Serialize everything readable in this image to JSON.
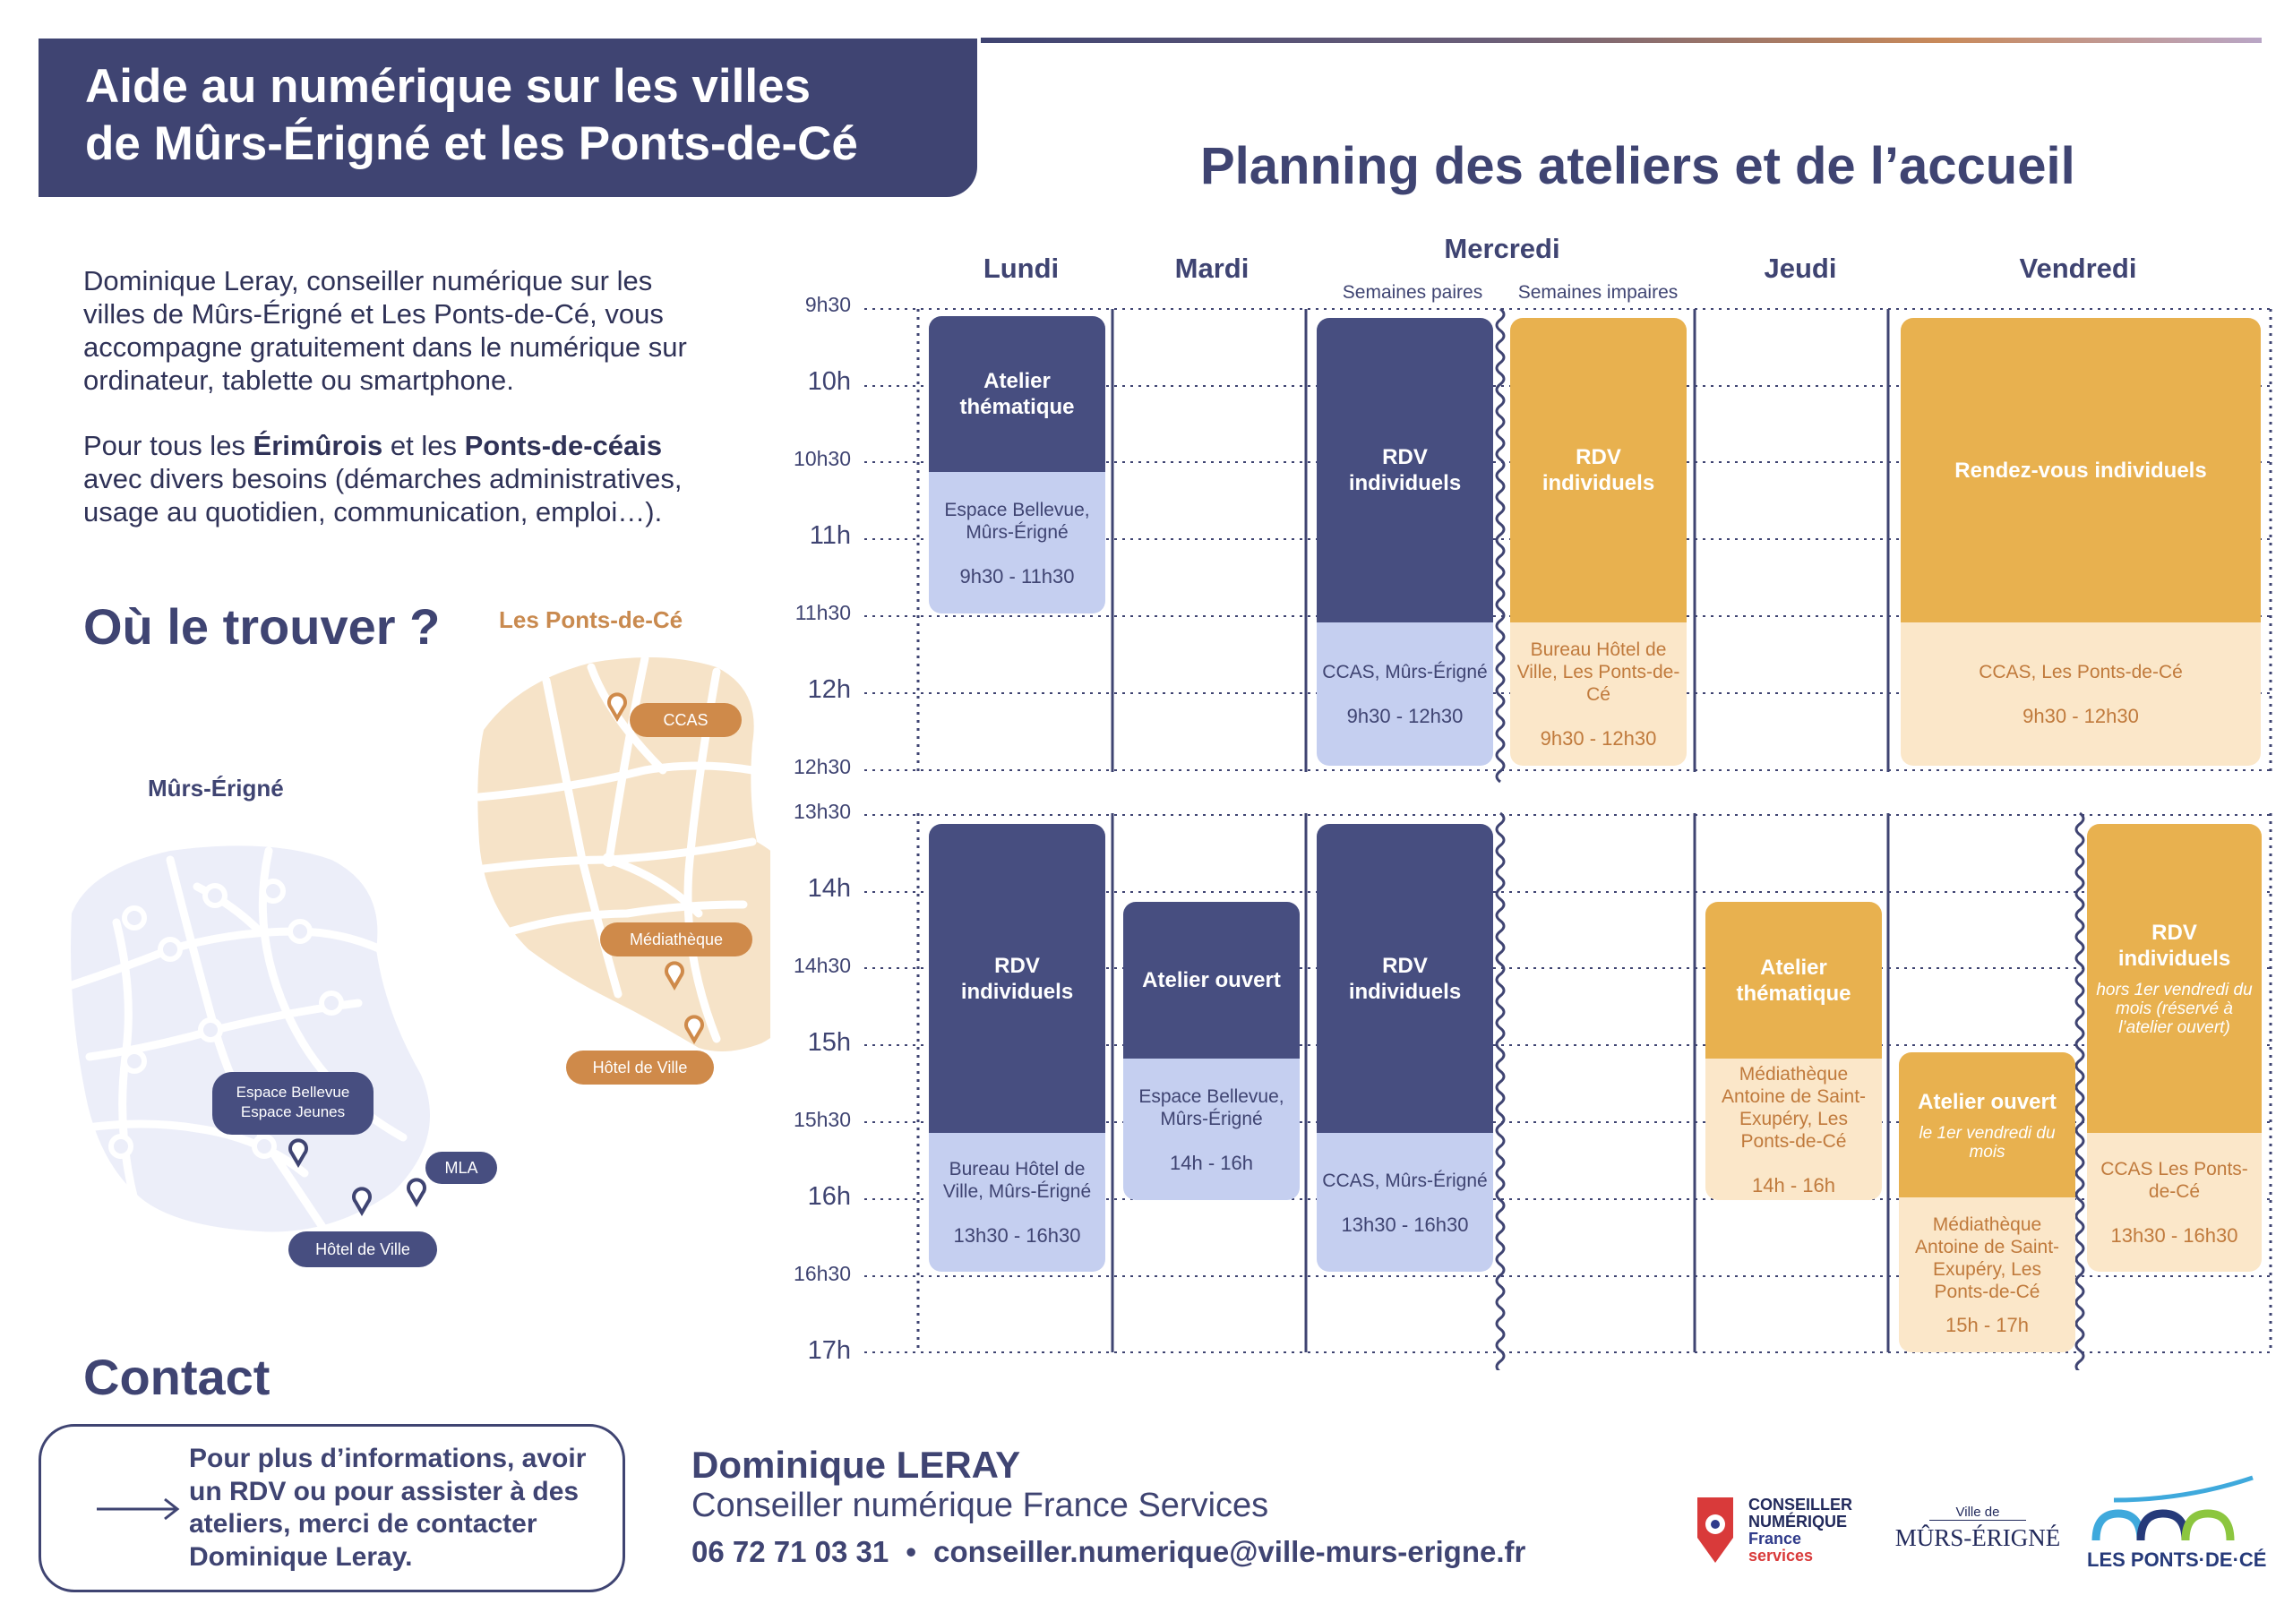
{
  "header": {
    "title_line1": "Aide au numérique sur les villes",
    "title_line2": "de Mûrs-Érigné et les Ponts-de-Cé"
  },
  "planning_title": "Planning des ateliers et de l’accueil",
  "intro": {
    "p1": "Dominique Leray, conseiller numérique sur les villes de Mûrs-Érigné et Les Ponts-de-Cé, vous accompagne gratuitement dans le numérique sur ordinateur, tablette ou smartphone.",
    "p2_a": "Pour tous les ",
    "p2_b": "Érimûrois",
    "p2_c": " et les ",
    "p2_d": "Ponts-de-céais",
    "p2_e": " avec divers besoins (démarches administratives, usage au quotidien, communication, emploi…)."
  },
  "where": {
    "title": "Où le trouver ?",
    "map_ponts_title": "Les Ponts-de-Cé",
    "map_murs_title": "Mûrs-Érigné",
    "ponts_pins": [
      "CCAS",
      "Médiathèque",
      "Hôtel de Ville"
    ],
    "murs_pin_bellevue_1": "Espace Bellevue",
    "murs_pin_bellevue_2": "Espace Jeunes",
    "murs_pin_mla": "MLA",
    "murs_pin_hotel": "Hôtel de Ville"
  },
  "contact": {
    "title": "Contact",
    "text": "Pour plus d’informations, avoir un RDV ou pour assister à des ateliers, merci de contacter Dominique Leray.",
    "arrow_icon": "arrow-right-icon",
    "name": "Dominique LERAY",
    "role": "Conseiller numérique France Services",
    "phone": "06 72 71 03 31",
    "separator": "•",
    "email": "conseiller.numerique@ville-murs-erigne.fr"
  },
  "schedule": {
    "days": [
      "Lundi",
      "Mardi",
      "Mercredi",
      "Jeudi",
      "Vendredi"
    ],
    "mercredi_sub": [
      "Semaines paires",
      "Semaines impaires"
    ],
    "morning_times": [
      "9h30",
      "10h",
      "10h30",
      "11h",
      "11h30",
      "12h",
      "12h30"
    ],
    "afternoon_times": [
      "13h30",
      "14h",
      "14h30",
      "15h",
      "15h30",
      "16h",
      "16h30",
      "17h"
    ],
    "cards": {
      "lun_am": {
        "title": "Atelier thématique",
        "place": "Espace Bellevue, Mûrs-Érigné",
        "time": "9h30 - 11h30"
      },
      "mer_pair_am": {
        "title": "RDV individuels",
        "place": "CCAS, Mûrs-Érigné",
        "time": "9h30 - 12h30"
      },
      "mer_impair_am": {
        "title": "RDV individuels",
        "place": "Bureau Hôtel de Ville, Les Ponts-de-Cé",
        "time": "9h30 - 12h30"
      },
      "ven_am": {
        "title": "Rendez-vous individuels",
        "place": "CCAS, Les Ponts-de-Cé",
        "time": "9h30 - 12h30"
      },
      "lun_pm": {
        "title": "RDV individuels",
        "place": "Bureau Hôtel de Ville, Mûrs-Érigné",
        "time": "13h30 - 16h30"
      },
      "mar_pm": {
        "title": "Atelier ouvert",
        "place": "Espace Bellevue, Mûrs-Érigné",
        "time": "14h - 16h"
      },
      "mer_pm": {
        "title": "RDV individuels",
        "place": "CCAS, Mûrs-Érigné",
        "time": "13h30 - 16h30"
      },
      "jeu_pm": {
        "title": "Atelier thématique",
        "place": "Médiathèque Antoine de Saint-Exupéry, Les Ponts-de-Cé",
        "time": "14h - 16h"
      },
      "ven_pm_a": {
        "title": "Atelier ouvert",
        "note": "le 1er vendredi du mois",
        "place": "Médiathèque Antoine de Saint-Exupéry, Les Ponts-de-Cé",
        "time": "15h - 17h"
      },
      "ven_pm_b": {
        "title": "RDV individuels",
        "note": "hors 1er vendredi du mois (réservé à l’atelier ouvert)",
        "place": "CCAS Les Ponts-de-Cé",
        "time": "13h30 - 16h30"
      }
    }
  },
  "logos": {
    "cn_line1": "CONSEILLER",
    "cn_line2": "NUMÉRIQUE",
    "cn_line3": "France",
    "cn_line4": "services",
    "murs_small": "Ville de",
    "murs_big": "MÛRS-ÉRIGNÉ",
    "ponts_text": "LES PONTS·DE·CÉ"
  },
  "colors": {
    "navy": "#3f4472",
    "navy_card": "#474e80",
    "navy_light": "#c5cff0",
    "gold": "#e8b14f",
    "gold_light": "#fbe7c9",
    "orange_text": "#c07a3c"
  }
}
